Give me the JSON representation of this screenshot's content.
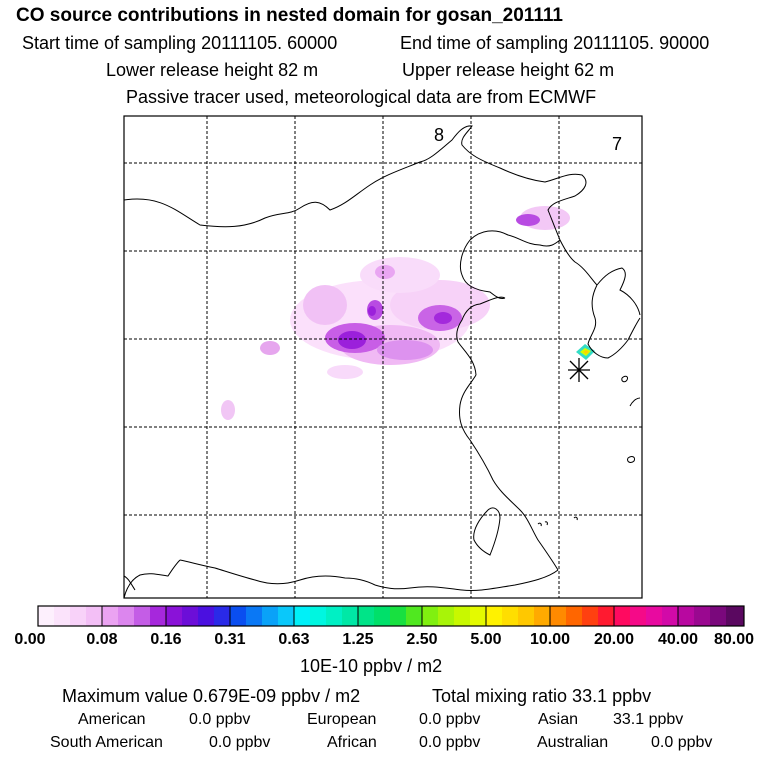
{
  "header": {
    "title": "CO  source contributions in nested domain for gosan_201111",
    "start_time": "Start time of sampling 20111105. 60000",
    "end_time": "End time of sampling 20111105. 90000",
    "lower_height": "Lower release height   82 m",
    "upper_height": "Upper release height   62 m",
    "tracer_note": "Passive tracer used, meteorological data are from ECMWF"
  },
  "map": {
    "labels": {
      "zone_8": "8",
      "zone_7": "7"
    }
  },
  "colorbar": {
    "ticks": [
      "0.00",
      "0.08",
      "0.16",
      "0.31",
      "0.63",
      "1.25",
      "2.50",
      "5.00",
      "10.00",
      "20.00",
      "40.00",
      "80.00"
    ],
    "unit": "10E-10 ppbv / m2"
  },
  "summary": {
    "max_value": "Maximum value  0.679E-09 ppbv / m2",
    "total_ratio": "Total mixing ratio       33.1 ppbv",
    "american": "American",
    "american_val": "0.0 ppbv",
    "european": "European",
    "european_val": "0.0 ppbv",
    "asian": "Asian",
    "asian_val": "33.1 ppbv",
    "south_american": "South American",
    "south_american_val": "0.0 ppbv",
    "african": "African",
    "african_val": "0.0 ppbv",
    "australian": "Australian",
    "australian_val": "0.0 ppbv"
  }
}
